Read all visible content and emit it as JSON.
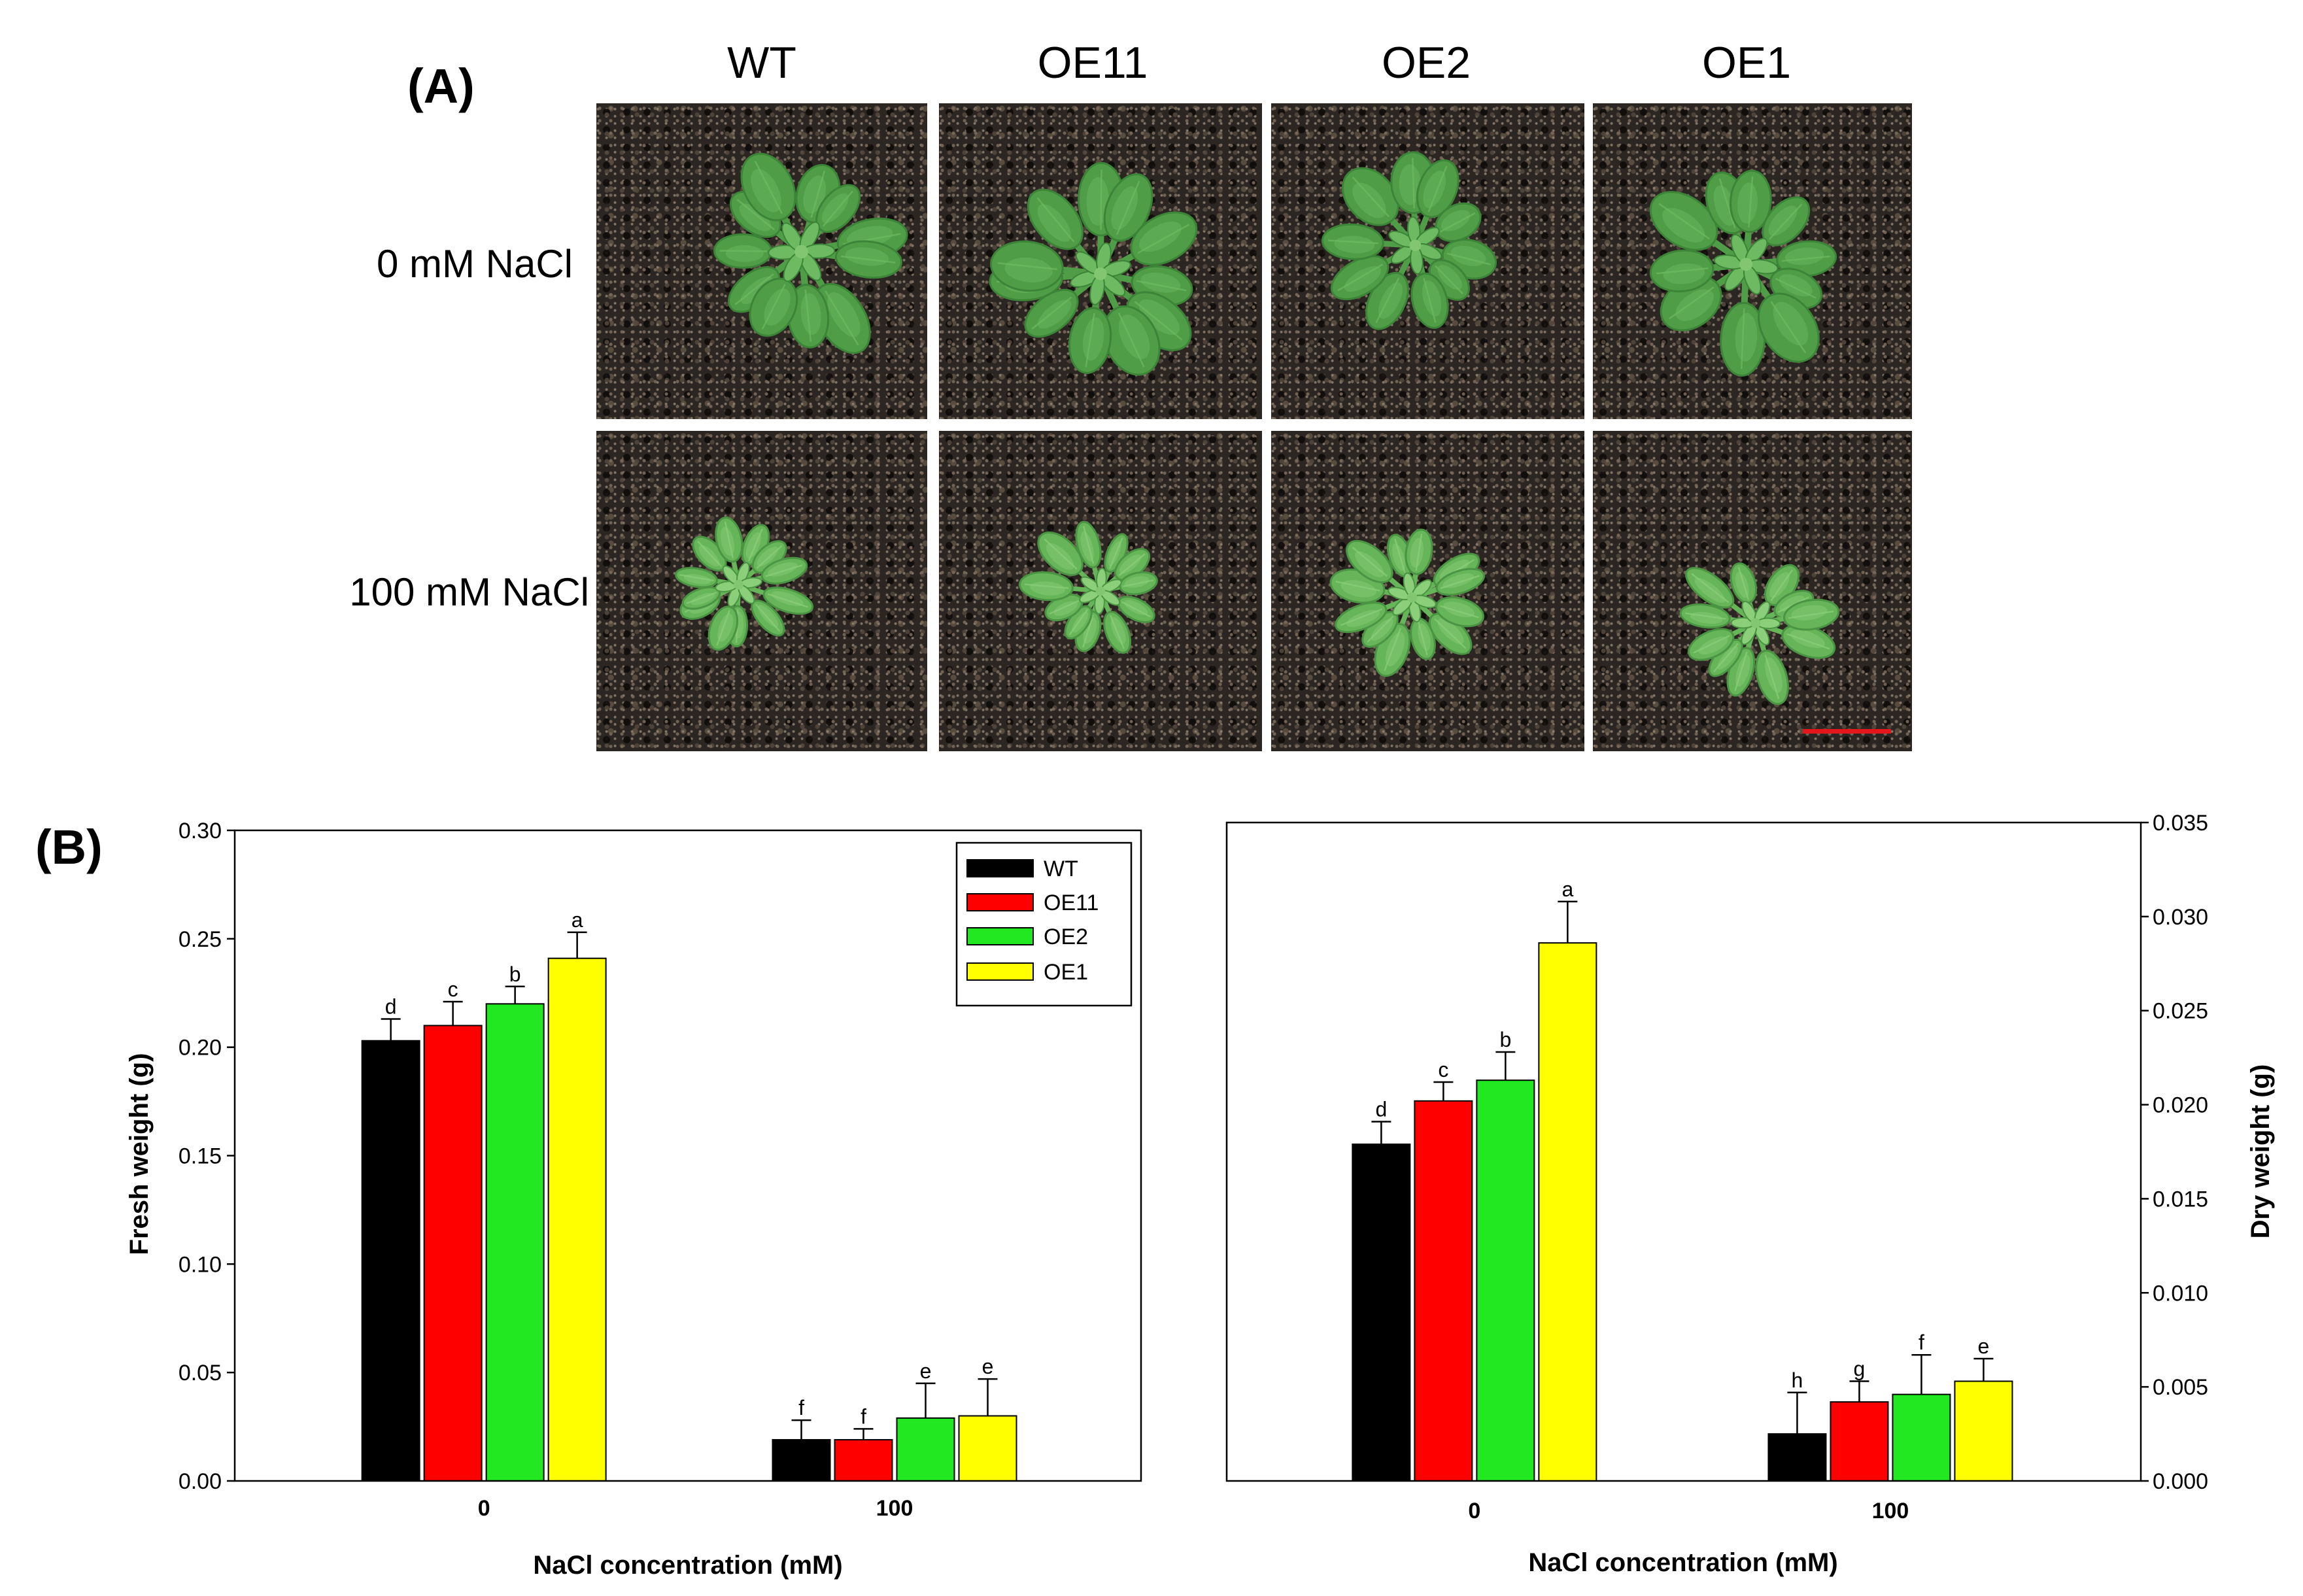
{
  "panel_a": {
    "label": "(A)",
    "columns": [
      "WT",
      "OE11",
      "OE2",
      "OE1"
    ],
    "rows": [
      "0 mM NaCl",
      "100 mM NaCl"
    ],
    "scale_bar_color": "#e3161b"
  },
  "panel_b": {
    "label": "(B)"
  },
  "chart_data": [
    {
      "type": "bar",
      "categories": [
        "0",
        "100"
      ],
      "xlabel": "NaCl concentration (mM)",
      "ylabel": "Fresh weight (g)",
      "ylim": [
        0,
        0.3
      ],
      "yticks": [
        "0.00",
        "0.05",
        "0.10",
        "0.15",
        "0.20",
        "0.25",
        "0.30"
      ],
      "y_axis_side": "left",
      "grid": false,
      "legend": "top-right",
      "series": [
        {
          "name": "WT",
          "color": "#000000",
          "values": [
            0.203,
            0.019
          ],
          "error": [
            0.01,
            0.009
          ],
          "letters": [
            "d",
            "f"
          ]
        },
        {
          "name": "OE11",
          "color": "#ff0000",
          "values": [
            0.21,
            0.019
          ],
          "error": [
            0.011,
            0.005
          ],
          "letters": [
            "c",
            "f"
          ]
        },
        {
          "name": "OE2",
          "color": "#22e822",
          "values": [
            0.22,
            0.029
          ],
          "error": [
            0.008,
            0.016
          ],
          "letters": [
            "b",
            "e"
          ]
        },
        {
          "name": "OE1",
          "color": "#ffff00",
          "values": [
            0.241,
            0.03
          ],
          "error": [
            0.012,
            0.017
          ],
          "letters": [
            "a",
            "e"
          ]
        }
      ]
    },
    {
      "type": "bar",
      "categories": [
        "0",
        "100"
      ],
      "xlabel": "NaCl concentration (mM)",
      "ylabel": "Dry weight (g)",
      "ylim": [
        0,
        0.035
      ],
      "yticks": [
        "0.000",
        "0.005",
        "0.010",
        "0.015",
        "0.020",
        "0.025",
        "0.030",
        "0.035"
      ],
      "y_axis_side": "right",
      "grid": false,
      "series": [
        {
          "color": "#000000",
          "values": [
            0.0179,
            0.0025
          ],
          "error": [
            0.0012,
            0.0022
          ],
          "letters": [
            "d",
            "h"
          ]
        },
        {
          "color": "#ff0000",
          "values": [
            0.0202,
            0.0042
          ],
          "error": [
            0.001,
            0.0011
          ],
          "letters": [
            "c",
            "g"
          ]
        },
        {
          "color": "#22e822",
          "values": [
            0.0213,
            0.0046
          ],
          "error": [
            0.0015,
            0.0021
          ],
          "letters": [
            "b",
            "f"
          ]
        },
        {
          "color": "#ffff00",
          "values": [
            0.0286,
            0.0053
          ],
          "error": [
            0.0022,
            0.0012
          ],
          "letters": [
            "a",
            "e"
          ]
        }
      ]
    }
  ]
}
